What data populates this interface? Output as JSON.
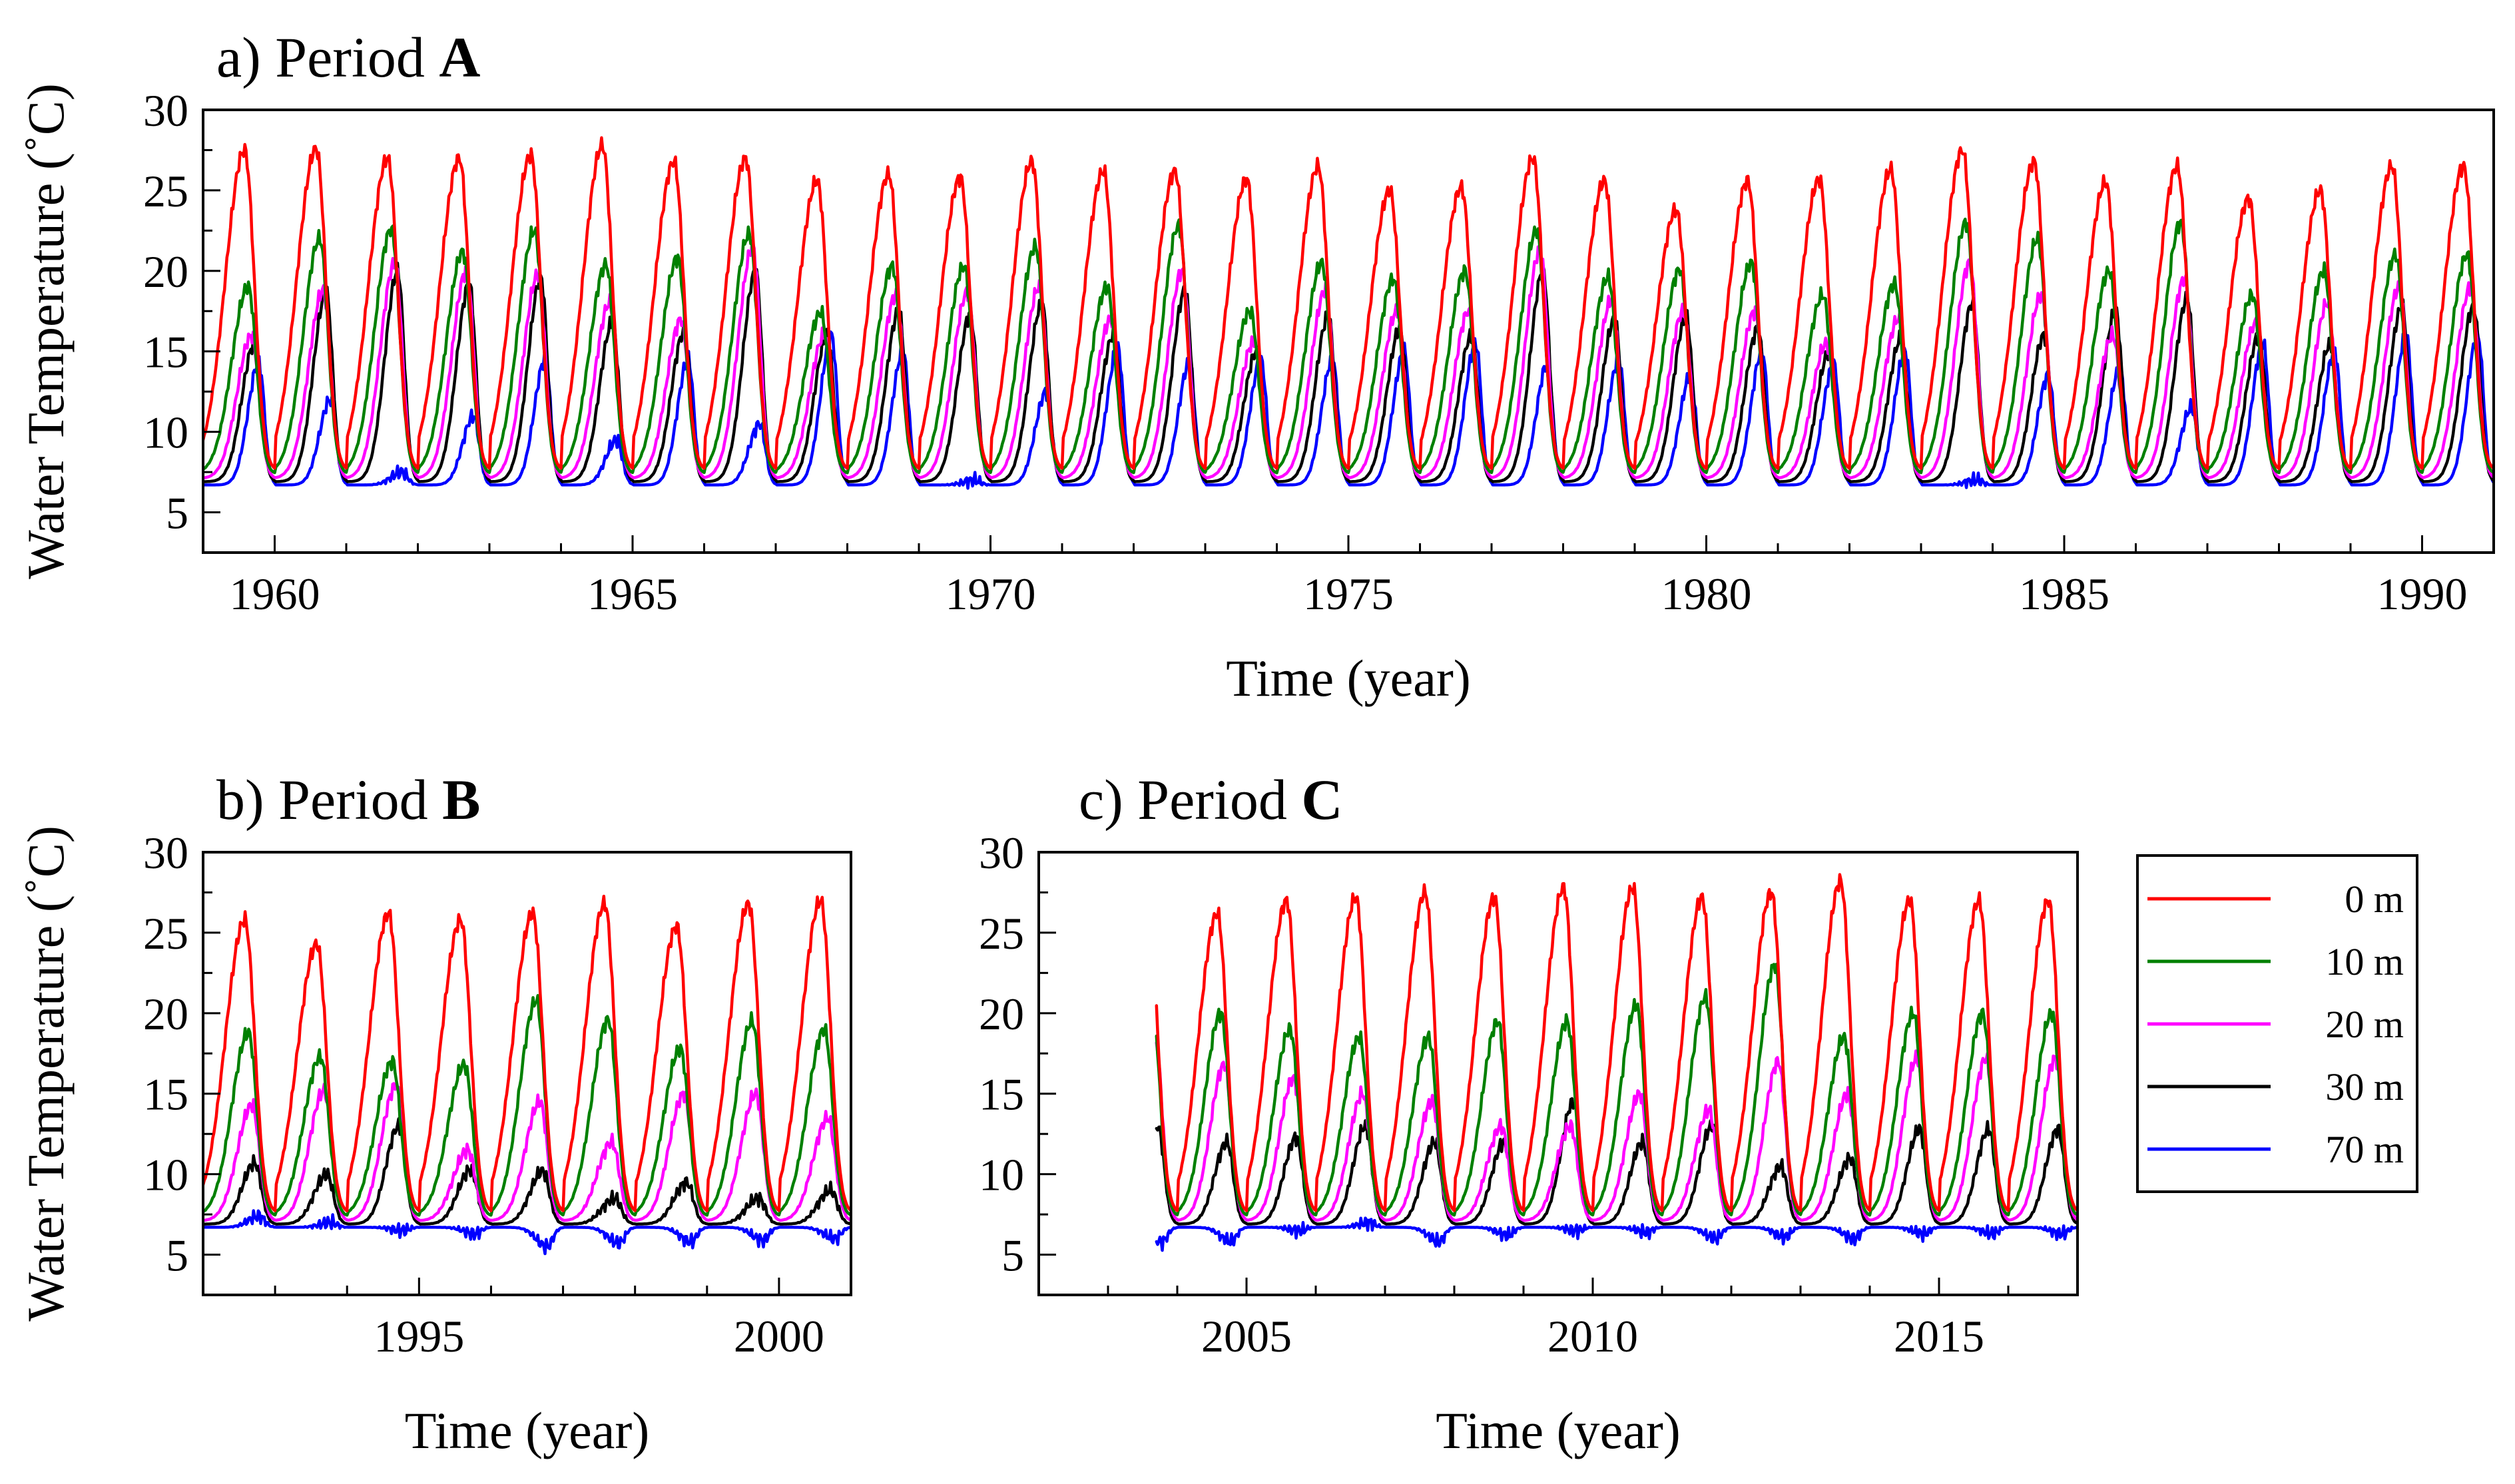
{
  "chart_data": [
    {
      "type": "line",
      "panel": "a",
      "title_prefix": "a) Period ",
      "title_bold": "A",
      "xlabel": "Time (year)",
      "ylabel": "Water Temperature (˚C)",
      "xlim": [
        1959.0,
        1991.0
      ],
      "ylim": [
        2.5,
        30
      ],
      "xticks_major": [
        1960,
        1965,
        1970,
        1975,
        1980,
        1985,
        1990
      ],
      "yticks_major": [
        5,
        10,
        15,
        20,
        25,
        30
      ],
      "peaks": {
        "0 m": [
          27.5,
          27.6,
          27.0,
          27.0,
          27.2,
          27.8,
          26.8,
          27.0,
          25.6,
          26.0,
          25.8,
          26.8,
          26.2,
          26.2,
          25.7,
          26.5,
          25.0,
          25.2,
          27.0,
          25.6,
          23.8,
          25.6,
          25.7,
          26.3,
          27.5,
          26.8,
          25.5,
          26.5,
          24.5,
          25.0,
          26.5
        ],
        "10 m": [
          19.0,
          22.0,
          22.6,
          21.2,
          22.5,
          20.4,
          20.8,
          22.3,
          17.4,
          20.3,
          20.3,
          21.5,
          19.0,
          22.8,
          17.5,
          20.5,
          19.5,
          20.0,
          22.5,
          19.6,
          20.1,
          20.5,
          18.5,
          19.2,
          23.0,
          22.0,
          20.0,
          23.0,
          18.5,
          20.0,
          21.0
        ],
        "20 m": [
          16.0,
          18.8,
          20.5,
          20.0,
          19.8,
          18.0,
          17.0,
          21.5,
          16.0,
          18.5,
          18.7,
          19.0,
          17.0,
          20.0,
          15.6,
          18.8,
          17.5,
          17.5,
          21.3,
          18.2,
          17.5,
          17.5,
          15.5,
          17.0,
          20.5,
          18.5,
          16.0,
          19.5,
          16.8,
          18.0,
          19.0
        ],
        "30 m": [
          15.5,
          18.7,
          20.0,
          19.2,
          19.6,
          16.8,
          16.2,
          20.0,
          16.0,
          17.5,
          17.3,
          18.0,
          16.0,
          18.8,
          15.0,
          17.2,
          16.4,
          16.0,
          20.0,
          17.0,
          17.2,
          16.4,
          15.0,
          15.8,
          18.0,
          16.0,
          17.5,
          18.3,
          16.0,
          15.5,
          17.8
        ],
        "70 m": [
          14.3,
          12.0,
          7.5,
          11.0,
          14.5,
          9.5,
          14.5,
          10.5,
          16.0,
          15.0,
          7.0,
          12.5,
          15.2,
          14.3,
          14.5,
          14.5,
          15.0,
          15.5,
          14.2,
          14.5,
          13.5,
          15.0,
          14.2,
          15.0,
          7.0,
          13.5,
          14.0,
          11.5,
          15.5,
          15.0,
          16.0
        ]
      }
    },
    {
      "type": "line",
      "panel": "b",
      "title_prefix": "b) Period ",
      "title_bold": "B",
      "xlabel": "Time (year)",
      "ylabel": "Water Temperature (˚C)",
      "xlim": [
        1992.0,
        2001.0
      ],
      "ylim": [
        2.5,
        30
      ],
      "xticks_major": [
        1995,
        2000
      ],
      "yticks_major": [
        5,
        10,
        15,
        20,
        25,
        30
      ],
      "peaks": {
        "0 m": [
          25.8,
          24.3,
          26.2,
          25.8,
          26.2,
          26.8,
          25.4,
          26.8,
          27.0
        ],
        "10 m": [
          18.8,
          17.3,
          17.0,
          16.8,
          20.8,
          19.6,
          17.8,
          19.5,
          19.0
        ],
        "20 m": [
          14.3,
          15.2,
          15.5,
          11.5,
          14.5,
          12.0,
          15.0,
          15.0,
          13.5
        ],
        "30 m": [
          10.7,
          10.0,
          13.0,
          10.3,
          10.2,
          8.5,
          9.5,
          8.5,
          9.0
        ],
        "70 m": [
          7.4,
          7.0,
          6.5,
          6.3,
          5.5,
          5.7,
          5.8,
          5.9,
          6.0
        ]
      }
    },
    {
      "type": "line",
      "panel": "c",
      "title_prefix": "c) Period ",
      "title_bold": "C",
      "xlabel": "Time (year)",
      "ylabel": "",
      "xlim": [
        2002.0,
        2017.0
      ],
      "ylim": [
        2.5,
        30
      ],
      "xticks_major": [
        2005,
        2010,
        2015
      ],
      "yticks_major": [
        5,
        10,
        15,
        20,
        25,
        30
      ],
      "peaks": {
        "0 m": [
          27.2,
          26.7,
          26.2,
          27.0,
          27.2,
          27.5,
          27.2,
          27.8,
          27.8,
          27.2,
          27.5,
          28.2,
          27.0
        ],
        "10 m": [
          17.0,
          21.0,
          20.0,
          19.0,
          18.5,
          18.5,
          19.5,
          19.5,
          20.5,
          21.0,
          23.0,
          18.5,
          20.0
        ],
        "20 m": [
          14.3,
          18.5,
          16.8,
          16.0,
          15.0,
          14.5,
          13.0,
          13.0,
          15.0,
          14.0,
          17.0,
          15.0,
          17.2
        ],
        "30 m": [
          10.0,
          13.0,
          12.0,
          12.3,
          13.0,
          12.0,
          12.0,
          14.5,
          12.0,
          13.0,
          10.5,
          11.0,
          12.8
        ],
        "70 m": [
          5.6,
          5.8,
          5.8,
          6.5,
          7.0,
          5.8,
          6.2,
          6.5,
          6.4,
          6.0,
          6.1,
          6.0,
          6.3
        ]
      }
    }
  ],
  "legend": {
    "position": "right-of-panel-c",
    "items": [
      {
        "label": "0 m",
        "color": "#ff0000"
      },
      {
        "label": "10 m",
        "color": "#008000"
      },
      {
        "label": "20 m",
        "color": "#ff00ff"
      },
      {
        "label": "30 m",
        "color": "#000000"
      },
      {
        "label": "70 m",
        "color": "#0000ff"
      }
    ]
  }
}
